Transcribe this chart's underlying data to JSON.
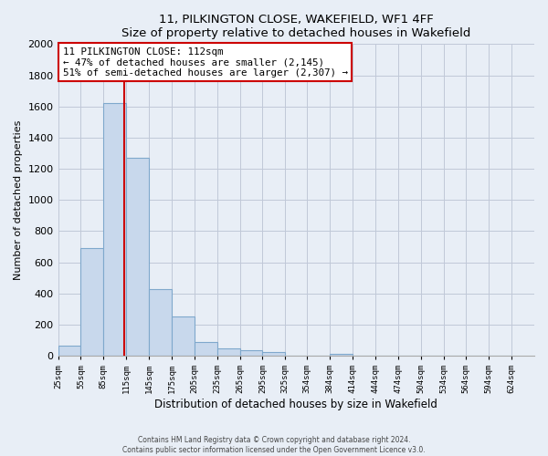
{
  "title": "11, PILKINGTON CLOSE, WAKEFIELD, WF1 4FF",
  "subtitle": "Size of property relative to detached houses in Wakefield",
  "xlabel": "Distribution of detached houses by size in Wakefield",
  "ylabel": "Number of detached properties",
  "bar_color": "#c8d8ec",
  "bar_edge_color": "#7fa8cc",
  "vline_color": "#cc0000",
  "vline_x": 112,
  "annotation_text": "11 PILKINGTON CLOSE: 112sqm\n← 47% of detached houses are smaller (2,145)\n51% of semi-detached houses are larger (2,307) →",
  "annotation_box_color": "white",
  "annotation_box_edge": "#cc0000",
  "bins": [
    25,
    55,
    85,
    115,
    145,
    175,
    205,
    235,
    265,
    295,
    325,
    354,
    384,
    414,
    444,
    474,
    504,
    534,
    564,
    594,
    624
  ],
  "counts": [
    65,
    690,
    1620,
    1270,
    430,
    255,
    90,
    50,
    35,
    25,
    0,
    0,
    15,
    0,
    0,
    0,
    0,
    0,
    0,
    0
  ],
  "ylim": [
    0,
    2000
  ],
  "yticks": [
    0,
    200,
    400,
    600,
    800,
    1000,
    1200,
    1400,
    1600,
    1800,
    2000
  ],
  "footer_line1": "Contains HM Land Registry data © Crown copyright and database right 2024.",
  "footer_line2": "Contains public sector information licensed under the Open Government Licence v3.0.",
  "background_color": "#e8eef6",
  "plot_bg_color": "#e8eef6",
  "grid_color": "#c0c8d8"
}
